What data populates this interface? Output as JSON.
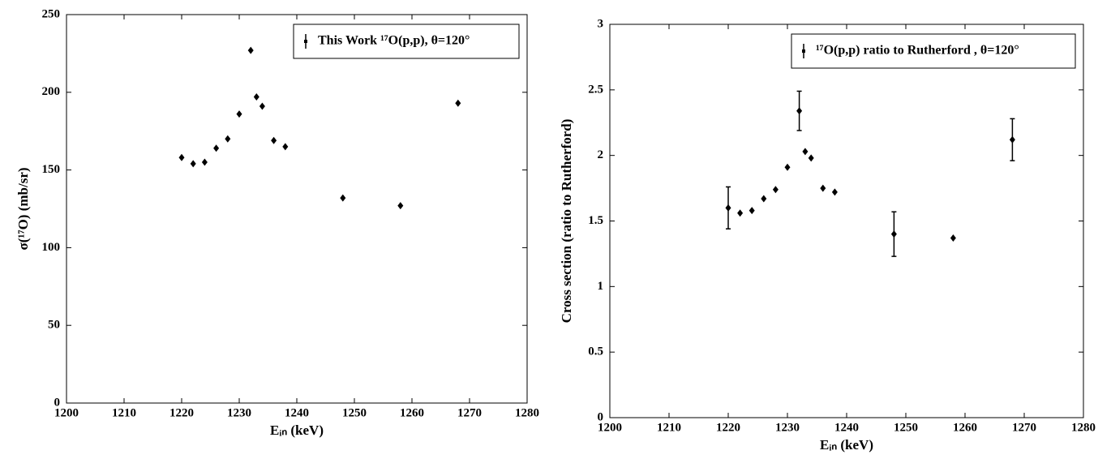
{
  "chart_data": [
    {
      "type": "scatter",
      "x_label": "Eᵢₙ (keV)",
      "y_label": "σ(¹⁷O) (mb/sr)",
      "x": [
        1220,
        1222,
        1224,
        1226,
        1228,
        1230,
        1232,
        1233,
        1234,
        1236,
        1238,
        1248,
        1258,
        1268
      ],
      "series": [
        {
          "name": "This Work ¹⁷O(p,p), θ=120°",
          "color": "#000000",
          "values": [
            158,
            154,
            155,
            164,
            170,
            186,
            227,
            197,
            191,
            169,
            165,
            132,
            127,
            193
          ]
        }
      ],
      "xlim": [
        1200,
        1280
      ],
      "xticks": [
        1200,
        1210,
        1220,
        1230,
        1240,
        1250,
        1260,
        1270,
        1280
      ],
      "ylim": [
        0,
        250
      ],
      "yticks": [
        0,
        50,
        100,
        150,
        200,
        250
      ],
      "grid": false,
      "legend": "upper right"
    },
    {
      "type": "scatter",
      "x_label": "Eᵢₙ (keV)",
      "y_label": "Cross section (ratio to Rutherford)",
      "x": [
        1220,
        1222,
        1224,
        1226,
        1228,
        1230,
        1232,
        1233,
        1234,
        1236,
        1238,
        1248,
        1258,
        1268
      ],
      "series": [
        {
          "name": "¹⁷O(p,p) ratio to Rutherford , θ=120°",
          "color": "#000000",
          "values": [
            1.6,
            1.56,
            1.58,
            1.67,
            1.74,
            1.91,
            2.34,
            2.03,
            1.98,
            1.75,
            1.72,
            1.4,
            1.37,
            2.12
          ],
          "errors": [
            0.16,
            null,
            null,
            null,
            null,
            null,
            0.15,
            null,
            null,
            null,
            null,
            0.17,
            null,
            0.16
          ]
        }
      ],
      "xlim": [
        1200,
        1280
      ],
      "xticks": [
        1200,
        1210,
        1220,
        1230,
        1240,
        1250,
        1260,
        1270,
        1280
      ],
      "ylim": [
        0,
        3
      ],
      "yticks": [
        0,
        0.5,
        1,
        1.5,
        2,
        2.5,
        3
      ],
      "grid": false,
      "legend": "upper right"
    }
  ]
}
